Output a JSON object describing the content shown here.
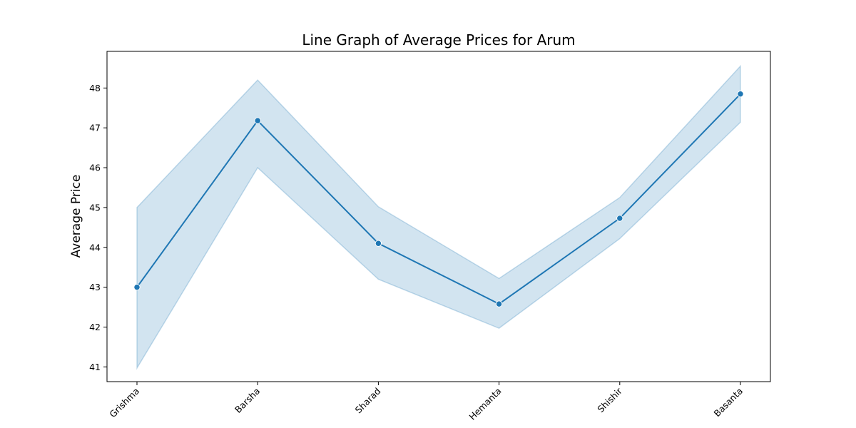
{
  "chart_data": {
    "type": "line",
    "title": "Line Graph of Average Prices for Arum",
    "xlabel": "",
    "ylabel": "Average Price",
    "categories": [
      "Grishma",
      "Barsha",
      "Sharad",
      "Hemanta",
      "Shishir",
      "Basanta"
    ],
    "series": [
      {
        "values": [
          43.0,
          47.18,
          44.1,
          42.58,
          44.73,
          47.85
        ],
        "ci_lower": [
          40.97,
          46.0,
          43.2,
          41.97,
          44.22,
          47.14
        ],
        "ci_upper": [
          45.0,
          48.2,
          45.02,
          43.22,
          45.25,
          48.55
        ]
      }
    ],
    "yticks": [
      41,
      42,
      43,
      44,
      45,
      46,
      47,
      48
    ],
    "ylim": [
      40.63,
      48.92
    ],
    "grid": false,
    "colors": {
      "line": "#1f77b4",
      "band": "#1f77b4"
    }
  }
}
